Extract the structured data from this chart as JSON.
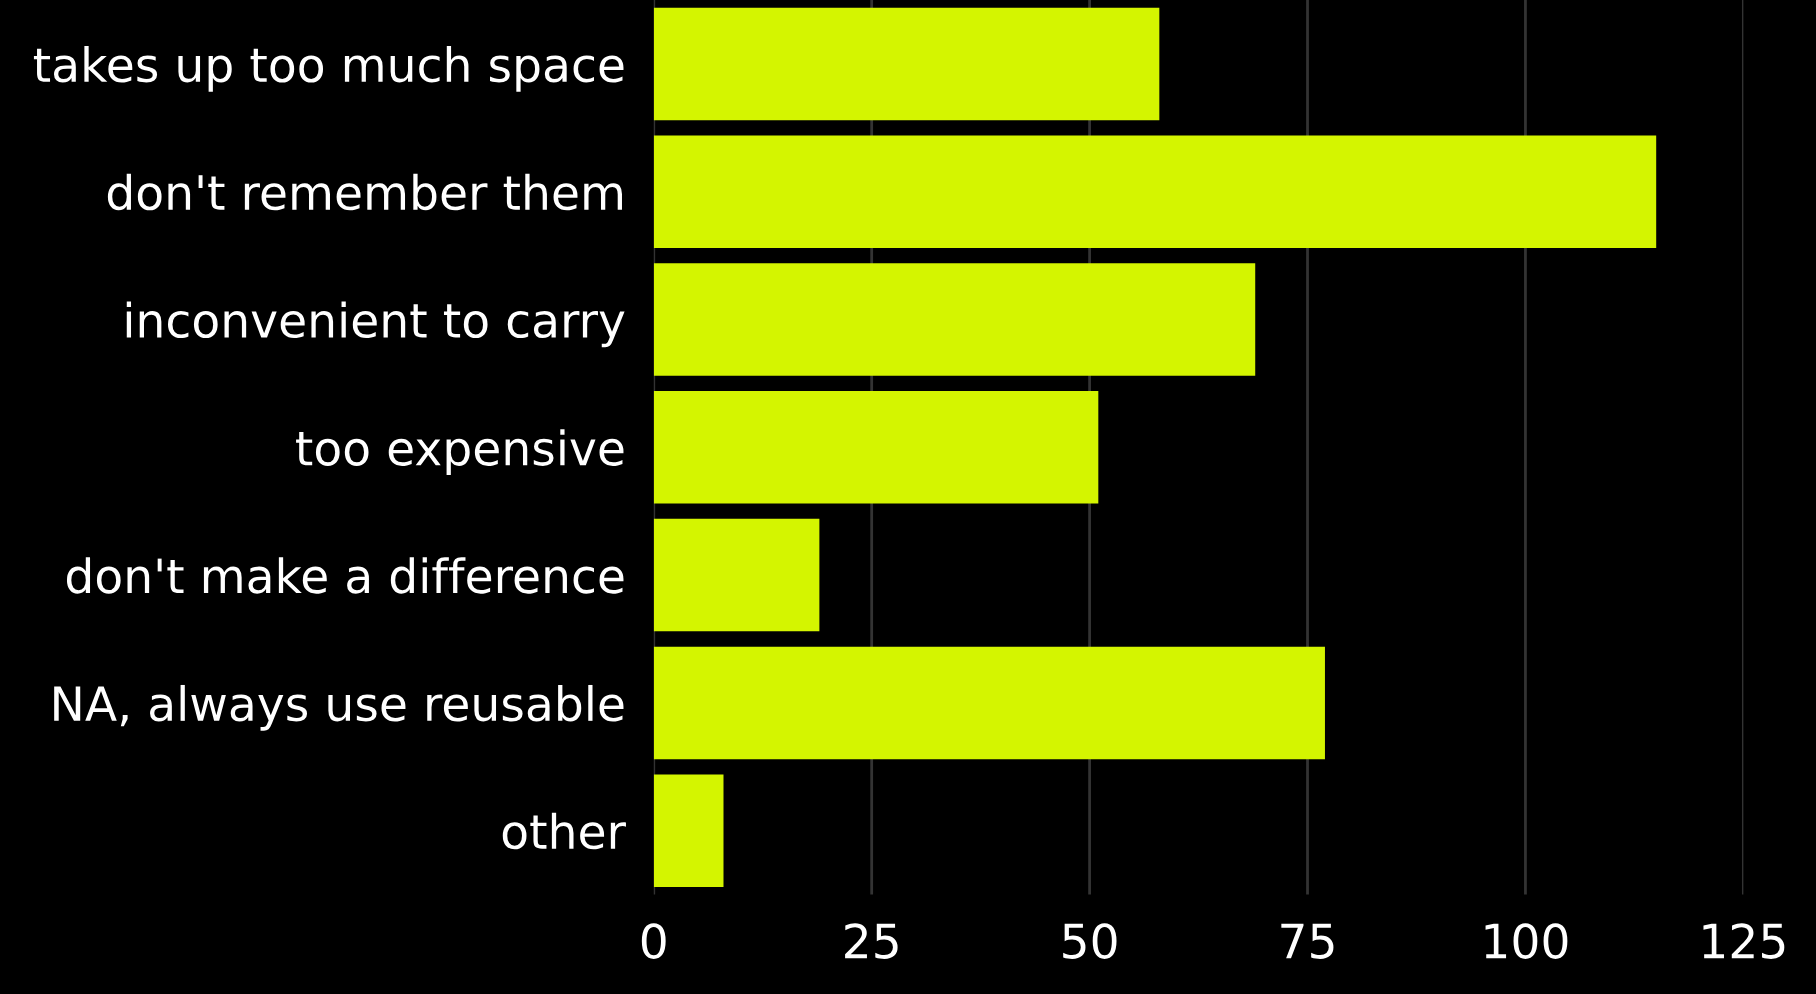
{
  "chart_data": {
    "type": "bar",
    "orientation": "horizontal",
    "categories": [
      "takes up too much space",
      "don't remember them",
      "inconvenient to carry",
      "too expensive",
      "don't make a difference",
      "NA, always use reusable",
      "other"
    ],
    "values": [
      58,
      115,
      69,
      51,
      19,
      77,
      8
    ],
    "color": "#d4f500",
    "xlim": [
      0,
      125
    ],
    "xticks": [
      0,
      25,
      50,
      75,
      100,
      125
    ],
    "grid": "x"
  }
}
